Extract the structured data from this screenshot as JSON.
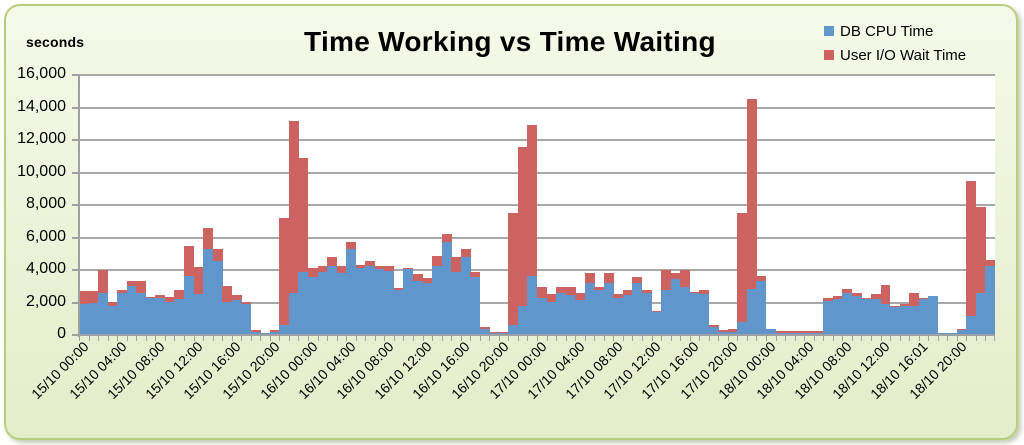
{
  "chart_data": {
    "type": "bar",
    "stacked": true,
    "title": "Time Working vs Time Waiting",
    "xlabel": "",
    "ylabel": "seconds",
    "ylim": [
      0,
      16000
    ],
    "yticks": [
      0,
      2000,
      4000,
      6000,
      8000,
      10000,
      12000,
      14000,
      16000
    ],
    "ytick_labels": [
      "0",
      "2,000",
      "4,000",
      "6,000",
      "8,000",
      "10,000",
      "12,000",
      "14,000",
      "16,000"
    ],
    "grid": true,
    "legend_position": "top-right",
    "x_tick_labels": [
      "15/10 00:00",
      "15/10 04:00",
      "15/10 08:00",
      "15/10 12:00",
      "15/10 16:00",
      "15/10 20:00",
      "16/10 00:00",
      "16/10 04:00",
      "16/10 08:00",
      "16/10 12:00",
      "16/10 16:00",
      "16/10 20:00",
      "17/10 00:00",
      "17/10 04:00",
      "17/10 08:00",
      "17/10 12:00",
      "17/10 16:00",
      "17/10 20:00",
      "18/10 00:00",
      "18/10 04:00",
      "18/10 08:00",
      "18/10 12:00",
      "18/10 16:01",
      "18/10 20:00"
    ],
    "x_label_every": 4,
    "series": [
      {
        "name": "DB CPU Time",
        "color": "#6096cb",
        "values": [
          1900,
          2000,
          2600,
          1800,
          2600,
          3000,
          2600,
          2300,
          2300,
          2050,
          2200,
          3650,
          2500,
          5270,
          4570,
          2050,
          2150,
          1900,
          200,
          100,
          200,
          600,
          2600,
          3900,
          3550,
          3900,
          4250,
          3800,
          5300,
          4150,
          4250,
          4050,
          3950,
          2750,
          4050,
          3300,
          3200,
          4250,
          5750,
          3900,
          4800,
          3550,
          400,
          100,
          100,
          600,
          1800,
          3650,
          2250,
          2050,
          2600,
          2450,
          2150,
          3200,
          2750,
          3200,
          2300,
          2450,
          3200,
          2600,
          1400,
          2750,
          3450,
          2950,
          2600,
          2550,
          500,
          200,
          200,
          800,
          2850,
          3300,
          350,
          150,
          150,
          150,
          150,
          150,
          2100,
          2200,
          2600,
          2400,
          2200,
          2200,
          1900,
          1700,
          1800,
          1800,
          2200,
          2400,
          150,
          150,
          300,
          1200,
          2600,
          4250
        ]
      },
      {
        "name": "User I/O Wait Time",
        "color": "#cd6360",
        "values": [
          800,
          700,
          1400,
          250,
          200,
          300,
          700,
          50,
          150,
          300,
          600,
          1850,
          1700,
          1290,
          700,
          980,
          310,
          150,
          100,
          0,
          100,
          6600,
          10600,
          7000,
          550,
          350,
          550,
          450,
          450,
          150,
          300,
          200,
          300,
          150,
          100,
          450,
          300,
          600,
          450,
          900,
          500,
          350,
          100,
          100,
          100,
          6900,
          9800,
          9250,
          700,
          450,
          350,
          500,
          450,
          600,
          200,
          600,
          200,
          300,
          350,
          200,
          50,
          1250,
          350,
          1050,
          50,
          200,
          100,
          100,
          150,
          6700,
          11650,
          350,
          50,
          100,
          100,
          100,
          100,
          100,
          150,
          200,
          250,
          200,
          100,
          300,
          1150,
          100,
          100,
          800,
          100,
          0,
          0,
          0,
          100,
          8300,
          5250,
          350
        ]
      }
    ]
  },
  "chart": {
    "title": "Time Working vs Time Waiting",
    "y_axis_title": "seconds",
    "legend": [
      {
        "label": "DB CPU Time",
        "color": "#6096cb"
      },
      {
        "label": "User I/O Wait Time",
        "color": "#cd6360"
      }
    ]
  }
}
